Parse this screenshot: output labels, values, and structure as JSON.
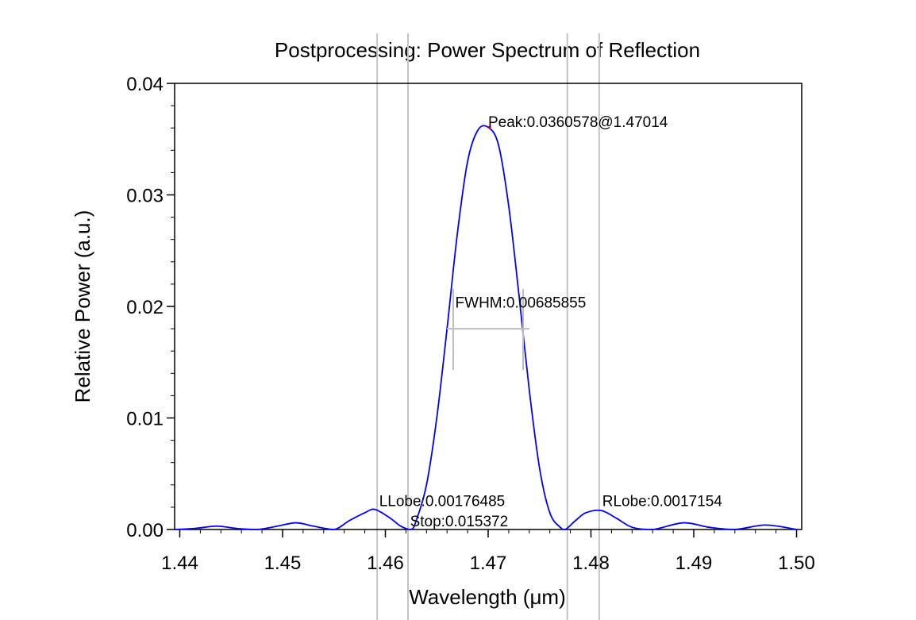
{
  "chart_data": {
    "type": "line",
    "title": "Postprocessing: Power Spectrum of Reflection",
    "xlabel": "Wavelength (μm)",
    "ylabel": "Relative Power (a.u.)",
    "xlim": [
      1.4395,
      1.5005
    ],
    "ylim": [
      0,
      0.04
    ],
    "xticks": [
      "1.44",
      "1.45",
      "1.46",
      "1.47",
      "1.48",
      "1.49",
      "1.50"
    ],
    "xtick_values": [
      1.44,
      1.45,
      1.46,
      1.47,
      1.48,
      1.49,
      1.5
    ],
    "yticks": [
      "0.00",
      "0.01",
      "0.02",
      "0.03",
      "0.04"
    ],
    "ytick_values": [
      0,
      0.01,
      0.02,
      0.03,
      0.04
    ],
    "grid": false,
    "series": [
      {
        "color": "#0000ff",
        "x": [
          1.4395,
          1.4415,
          1.4436,
          1.4455,
          1.4475,
          1.4495,
          1.4513,
          1.453,
          1.455,
          1.4565,
          1.458,
          1.459,
          1.4605,
          1.4615,
          1.4625,
          1.463,
          1.464,
          1.465,
          1.466,
          1.467,
          1.468,
          1.469,
          1.47,
          1.471,
          1.472,
          1.473,
          1.474,
          1.475,
          1.476,
          1.477,
          1.4775,
          1.4785,
          1.4795,
          1.481,
          1.4825,
          1.484,
          1.486,
          1.489,
          1.4915,
          1.494,
          1.497,
          1.5
        ],
        "values": [
          0.0,
          0.0001,
          0.0003,
          0.0001,
          0.0,
          0.0003,
          0.0006,
          0.0003,
          0.0,
          0.0008,
          0.0015,
          0.0018,
          0.001,
          0.0003,
          0.0,
          0.0008,
          0.004,
          0.01,
          0.018,
          0.0265,
          0.033,
          0.0358,
          0.03606,
          0.0345,
          0.029,
          0.021,
          0.0125,
          0.0055,
          0.0015,
          0.0002,
          0.0,
          0.0008,
          0.0015,
          0.0017,
          0.001,
          0.0002,
          0.0,
          0.0006,
          0.0002,
          0.0,
          0.0004,
          0.0
        ]
      }
    ],
    "vlines": [
      1.4592,
      1.4622,
      1.4777,
      1.4808
    ],
    "fwhm_bar": {
      "x1": 1.4666,
      "x2": 1.4734,
      "y": 0.018
    },
    "annotations": [
      {
        "text": "Peak:0.0360578@1.47014",
        "x": 1.47,
        "y": 0.0361
      },
      {
        "text": "FWHM:0.00685855",
        "x": 1.4668,
        "y": 0.0199
      },
      {
        "text": "LLobe:0.00176485",
        "x": 1.4594,
        "y": 0.0021
      },
      {
        "text": "Stop:0.015372",
        "x": 1.4624,
        "y": 0.0003
      },
      {
        "text": "RLobe:0.0017154",
        "x": 1.4811,
        "y": 0.0021
      }
    ]
  }
}
